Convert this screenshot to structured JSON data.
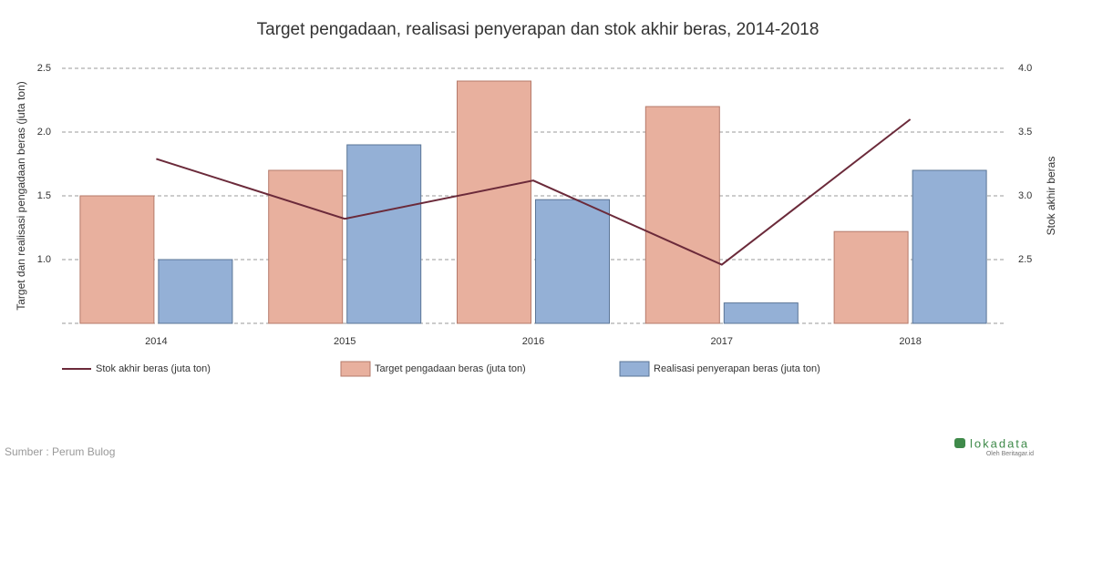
{
  "chart_data": {
    "type": "bar",
    "title": "Target pengadaan, realisasi penyerapan dan stok akhir beras, 2014-2018",
    "categories": [
      "2014",
      "2015",
      "2016",
      "2017",
      "2018"
    ],
    "ylabel": "Target dan realisasi pengadaan beras (juta ton)",
    "y2label": "Stok akhir beras",
    "ylim": [
      0.5,
      2.5
    ],
    "yticks": [
      {
        "value": 1,
        "label": "1.0"
      },
      1.5,
      {
        "value": 2,
        "label": "2.0"
      },
      2.5
    ],
    "y2lim": [
      2.0,
      4.0
    ],
    "y2ticks": [
      2.5,
      {
        "value": 3,
        "label": "3.0"
      },
      3.5,
      {
        "value": 4,
        "label": "4.0"
      }
    ],
    "grid": true,
    "series": [
      {
        "name": "Stok akhir beras (juta ton)",
        "type": "line",
        "axis": "y2",
        "color": "#6b2a3a",
        "values": [
          3.29,
          2.82,
          3.12,
          2.46,
          3.6
        ]
      },
      {
        "name": "Target pengadaan beras (juta ton)",
        "type": "bar",
        "color": "#e8b09e",
        "stroke": "#b57a6a",
        "values": [
          1.5,
          1.7,
          2.4,
          2.2,
          1.22
        ]
      },
      {
        "name": "Realisasi penyerapan beras (juta ton)",
        "type": "bar",
        "color": "#94b0d6",
        "stroke": "#5a7596",
        "values": [
          1.0,
          1.9,
          1.47,
          0.66,
          1.7
        ]
      }
    ],
    "source": "Sumber : Perum Bulog"
  },
  "branding": {
    "name": "lokadata",
    "byline": "Oleh Beritagar.id"
  }
}
